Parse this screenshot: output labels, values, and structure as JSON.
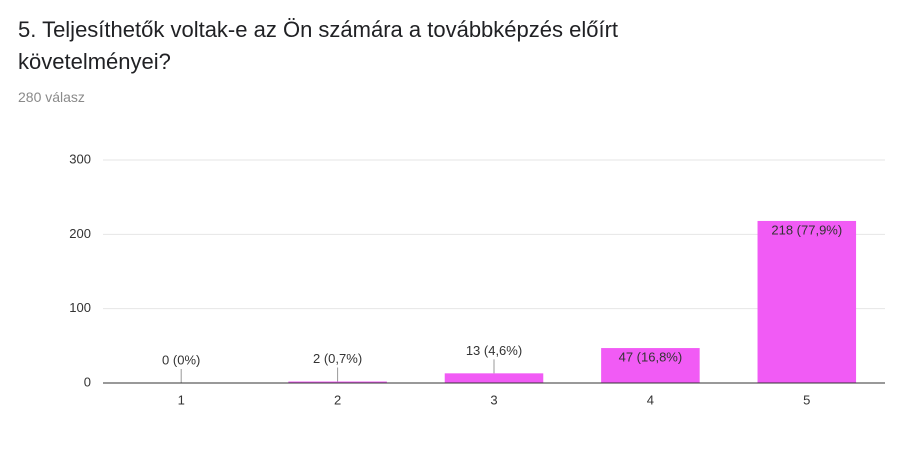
{
  "chart_data": {
    "type": "bar",
    "title": "5. Teljesíthetők voltak-e az Ön számára a továbbképzés előírt követelményei?",
    "subtitle": "280 válasz",
    "categories": [
      "1",
      "2",
      "3",
      "4",
      "5"
    ],
    "values": [
      0,
      2,
      13,
      47,
      218
    ],
    "value_labels": [
      "0 (0%)",
      "2 (0,7%)",
      "13 (4,6%)",
      "47 (16,8%)",
      "218 (77,9%)"
    ],
    "color": "#f15bf5",
    "ylim": [
      0,
      300
    ],
    "yticks": [
      0,
      100,
      200,
      300
    ],
    "grid": true
  }
}
